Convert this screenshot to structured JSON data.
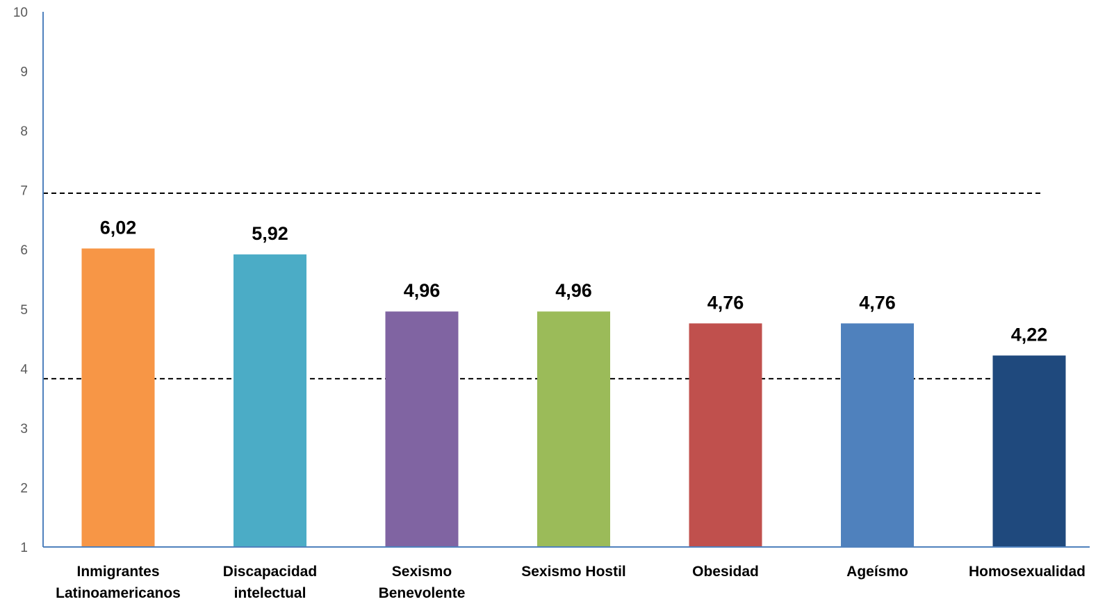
{
  "chart_data": {
    "type": "bar",
    "categories": [
      [
        "Inmigrantes",
        "Latinoamericanos"
      ],
      [
        "Discapacidad",
        "intelectual"
      ],
      [
        "Sexismo",
        "Benevolente"
      ],
      [
        "Sexismo Hostil"
      ],
      [
        "Obesidad"
      ],
      [
        "Ageísmo"
      ],
      [
        "Homosexualidad"
      ]
    ],
    "values": [
      6.02,
      5.92,
      4.96,
      4.96,
      4.76,
      4.76,
      4.22
    ],
    "value_labels": [
      "6,02",
      "5,92",
      "4,96",
      "4,96",
      "4,76",
      "4,76",
      "4,22"
    ],
    "colors": [
      "#F79646",
      "#4BACC6",
      "#8064A2",
      "#9BBB59",
      "#C0504D",
      "#4F81BD",
      "#1F497D"
    ],
    "ylim": [
      1,
      10
    ],
    "yticks": [
      "1",
      "2",
      "3",
      "4",
      "5",
      "6",
      "7",
      "8",
      "9",
      "10"
    ],
    "reference_lines": [
      {
        "value": 6.95,
        "style": "dashed",
        "color": "#000000"
      },
      {
        "value": 3.83,
        "style": "dashed",
        "color": "#000000"
      }
    ],
    "axis_color": "#4F81BD",
    "grid": false,
    "legend": "none",
    "title": "",
    "xlabel": "",
    "ylabel": ""
  }
}
